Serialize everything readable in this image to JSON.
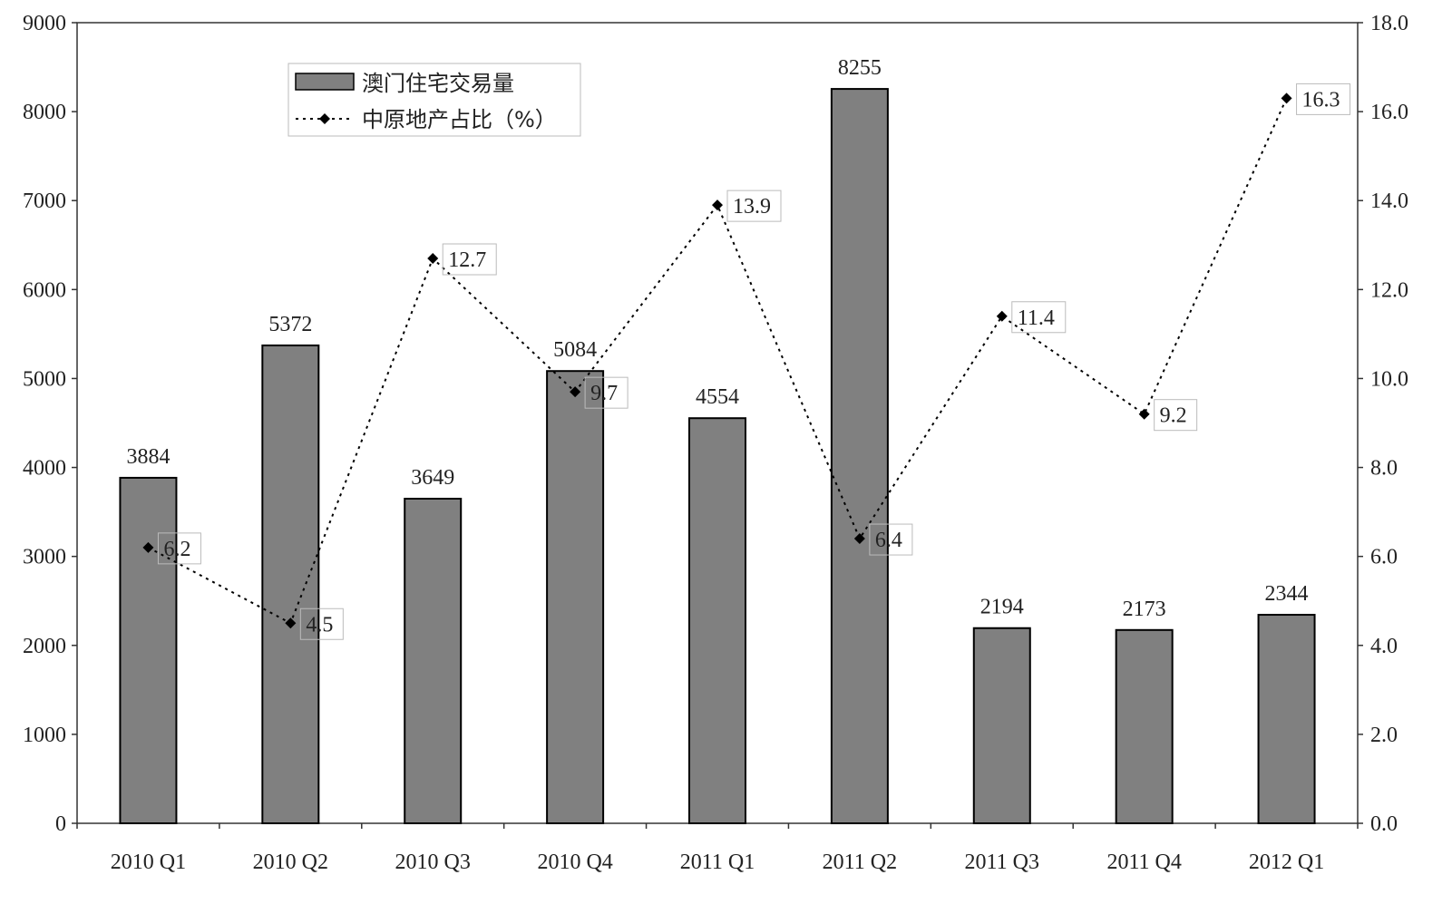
{
  "chart_data": {
    "type": "bar",
    "categories": [
      "2010 Q1",
      "2010 Q2",
      "2010 Q3",
      "2010 Q4",
      "2011 Q1",
      "2011 Q2",
      "2011 Q3",
      "2011 Q4",
      "2012 Q1"
    ],
    "series": [
      {
        "name": "澳门住宅交易量",
        "type": "bar",
        "axis": "left",
        "color": "#808080",
        "values": [
          3884,
          5372,
          3649,
          5084,
          4554,
          8255,
          2194,
          2173,
          2344
        ]
      },
      {
        "name": "中原地产占比（%）",
        "type": "line",
        "axis": "right",
        "color": "#000000",
        "line_style": "dotted",
        "marker": "diamond",
        "values": [
          6.2,
          4.5,
          12.7,
          9.7,
          13.9,
          6.4,
          11.4,
          9.2,
          16.3
        ]
      }
    ],
    "y_left": {
      "ylim": [
        0,
        9000
      ],
      "ticks": [
        "0",
        "1000",
        "2000",
        "3000",
        "4000",
        "5000",
        "6000",
        "7000",
        "8000",
        "9000"
      ]
    },
    "y_right": {
      "ylim": [
        0,
        18
      ],
      "ticks": [
        "0.0",
        "2.0",
        "4.0",
        "6.0",
        "8.0",
        "10.0",
        "12.0",
        "14.0",
        "16.0",
        "18.0"
      ]
    },
    "line_labels": [
      "6.2",
      "4.5",
      "12.7",
      "9.7",
      "13.9",
      "6.4",
      "11.4",
      "9.2",
      "16.3"
    ],
    "bar_labels": [
      "3884",
      "5372",
      "3649",
      "5084",
      "4554",
      "8255",
      "2194",
      "2173",
      "2344"
    ],
    "legend_position": "top-left"
  }
}
